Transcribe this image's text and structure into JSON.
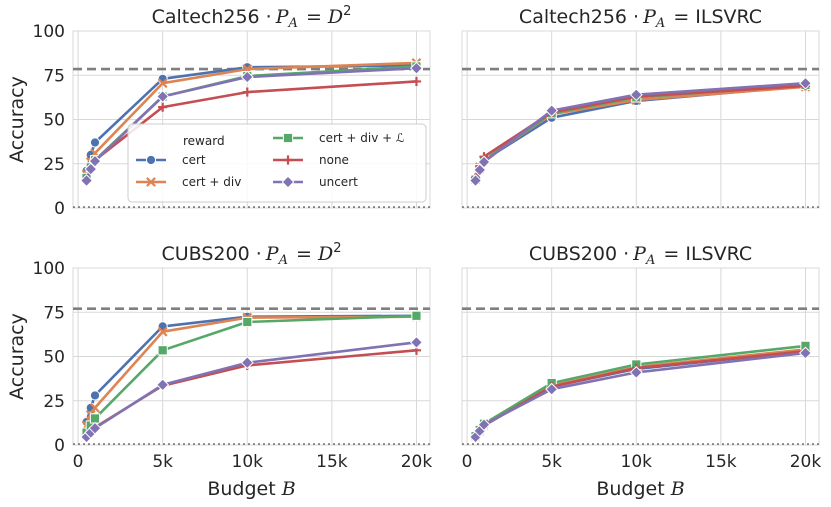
{
  "chart_data": [
    {
      "type": "line",
      "title_text": "Caltech256 ·",
      "title_math": "P_A = D^2",
      "xlabel": "",
      "ylabel": "Accuracy",
      "xlim": [
        -300,
        20800
      ],
      "ylim": [
        0,
        100
      ],
      "yticks": [
        "0",
        "25",
        "50",
        "75",
        "100"
      ],
      "xticks": [],
      "hline_dashed": 78.5,
      "hline_dotted": 0.5,
      "series": [
        {
          "name": "cert",
          "x": [
            500,
            750,
            1000,
            5000,
            10000,
            20000
          ],
          "y": [
            21,
            30,
            37,
            73,
            79.5,
            80.5
          ]
        },
        {
          "name": "cert + div",
          "x": [
            500,
            750,
            1000,
            5000,
            10000,
            20000
          ],
          "y": [
            19,
            26,
            31,
            70.5,
            78.5,
            82
          ]
        },
        {
          "name": "cert + div + ℒ",
          "x": [
            500,
            750,
            1000,
            5000,
            10000,
            20000
          ],
          "y": [
            17,
            23,
            27,
            63,
            74.5,
            80
          ]
        },
        {
          "name": "none",
          "x": [
            500,
            750,
            1000,
            5000,
            10000,
            20000
          ],
          "y": [
            16,
            22,
            27,
            57,
            65.5,
            71.5
          ]
        },
        {
          "name": "uncert",
          "x": [
            500,
            750,
            1000,
            5000,
            10000,
            20000
          ],
          "y": [
            15.5,
            22,
            26.5,
            63,
            74,
            79
          ]
        }
      ],
      "legend": {
        "title": "reward",
        "placement": "center"
      }
    },
    {
      "type": "line",
      "title_text": "Caltech256 ·",
      "title_math": "P_A = ILSVRC",
      "xlabel": "",
      "ylabel": "",
      "xlim": [
        -300,
        20800
      ],
      "ylim": [
        0,
        100
      ],
      "yticks": [],
      "xticks": [],
      "hline_dashed": 78.5,
      "hline_dotted": 0.5,
      "series": [
        {
          "name": "cert",
          "x": [
            500,
            750,
            1000,
            5000,
            10000,
            20000
          ],
          "y": [
            16,
            22,
            27,
            51,
            60.5,
            69
          ]
        },
        {
          "name": "cert + div",
          "x": [
            500,
            750,
            1000,
            5000,
            10000,
            20000
          ],
          "y": [
            16,
            23,
            27,
            53,
            61,
            68.5
          ]
        },
        {
          "name": "cert + div + ℒ",
          "x": [
            500,
            750,
            1000,
            5000,
            10000,
            20000
          ],
          "y": [
            16,
            22,
            27,
            53.5,
            62.5,
            69.5
          ]
        },
        {
          "name": "none",
          "x": [
            500,
            750,
            1000,
            5000,
            10000,
            20000
          ],
          "y": [
            17,
            23.5,
            29,
            54,
            63,
            69
          ]
        },
        {
          "name": "uncert",
          "x": [
            500,
            750,
            1000,
            5000,
            10000,
            20000
          ],
          "y": [
            15.5,
            21.5,
            26,
            55,
            64,
            70.5
          ]
        }
      ]
    },
    {
      "type": "line",
      "title_text": "CUBS200 ·",
      "title_math": "P_A = D^2",
      "xlabel": "Budget B",
      "ylabel": "Accuracy",
      "xlim": [
        -300,
        20800
      ],
      "ylim": [
        0,
        100
      ],
      "yticks": [
        "0",
        "25",
        "50",
        "75",
        "100"
      ],
      "xticks": [
        "0",
        "5k",
        "10k",
        "15k",
        "20k"
      ],
      "hline_dashed": 77,
      "hline_dotted": 0.5,
      "series": [
        {
          "name": "cert",
          "x": [
            500,
            750,
            1000,
            5000,
            10000,
            20000
          ],
          "y": [
            13,
            21,
            28,
            67,
            72.5,
            73
          ]
        },
        {
          "name": "cert + div",
          "x": [
            500,
            750,
            1000,
            5000,
            10000,
            20000
          ],
          "y": [
            11,
            17,
            21,
            64,
            72,
            72.5
          ]
        },
        {
          "name": "cert + div + ℒ",
          "x": [
            500,
            750,
            1000,
            5000,
            10000,
            20000
          ],
          "y": [
            7,
            11,
            15,
            53.5,
            69.5,
            73
          ]
        },
        {
          "name": "none",
          "x": [
            500,
            750,
            1000,
            5000,
            10000,
            20000
          ],
          "y": [
            5,
            8,
            10,
            33.5,
            45,
            53.5
          ]
        },
        {
          "name": "uncert",
          "x": [
            500,
            750,
            1000,
            5000,
            10000,
            20000
          ],
          "y": [
            4.5,
            7,
            9.5,
            34,
            46.5,
            58
          ]
        }
      ]
    },
    {
      "type": "line",
      "title_text": "CUBS200 ·",
      "title_math": "P_A = ILSVRC",
      "xlabel": "Budget B",
      "ylabel": "",
      "xlim": [
        -300,
        20800
      ],
      "ylim": [
        0,
        100
      ],
      "yticks": [],
      "xticks": [
        "0",
        "5k",
        "10k",
        "15k",
        "20k"
      ],
      "hline_dashed": 77,
      "hline_dotted": 0.5,
      "series": [
        {
          "name": "cert",
          "x": [
            500,
            750,
            1000,
            5000,
            10000,
            20000
          ],
          "y": [
            5,
            8,
            11,
            33,
            43,
            53
          ]
        },
        {
          "name": "cert + div",
          "x": [
            500,
            750,
            1000,
            5000,
            10000,
            20000
          ],
          "y": [
            5,
            8,
            11.5,
            33.5,
            44,
            54
          ]
        },
        {
          "name": "cert + div + ℒ",
          "x": [
            500,
            750,
            1000,
            5000,
            10000,
            20000
          ],
          "y": [
            5,
            8.5,
            12,
            35,
            45.5,
            56
          ]
        },
        {
          "name": "none",
          "x": [
            500,
            750,
            1000,
            5000,
            10000,
            20000
          ],
          "y": [
            5,
            8,
            11,
            33,
            43.5,
            53
          ]
        },
        {
          "name": "uncert",
          "x": [
            500,
            750,
            1000,
            5000,
            10000,
            20000
          ],
          "y": [
            4.5,
            8,
            11.5,
            31.5,
            41,
            52
          ]
        }
      ]
    }
  ],
  "colors": {
    "cert": "#4c72b0",
    "cert + div": "#dd8452",
    "cert + div + ℒ": "#55a868",
    "none": "#c44e52",
    "uncert": "#8172b3",
    "grid": "#d8d8d8",
    "reference": "#7f7f7f"
  },
  "markers": {
    "cert": "circle",
    "cert + div": "x",
    "cert + div + ℒ": "square",
    "none": "plus",
    "uncert": "diamond"
  }
}
